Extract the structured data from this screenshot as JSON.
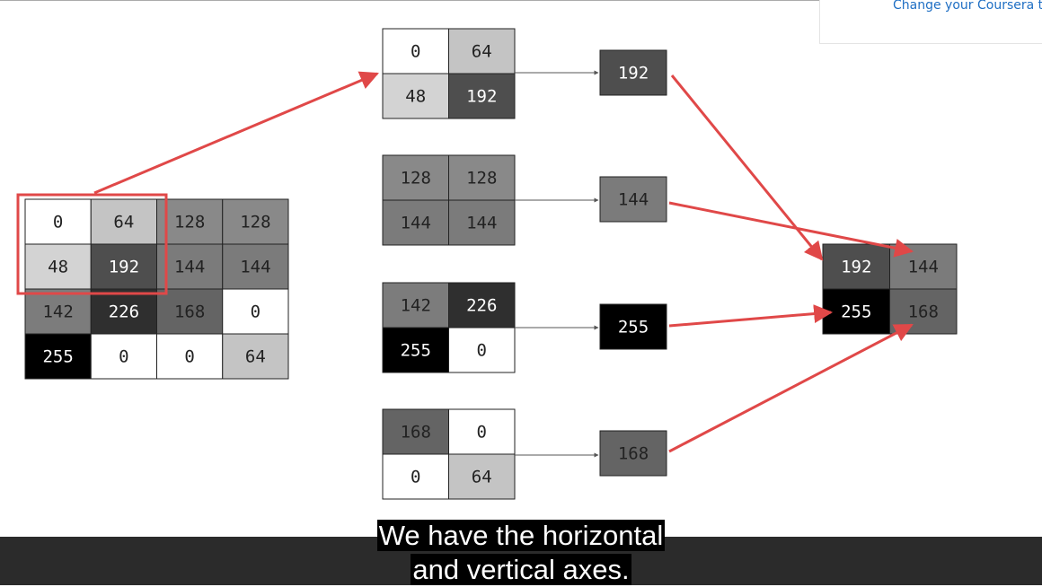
{
  "banner": {
    "text": "Change your Coursera t"
  },
  "input_grid": [
    [
      0,
      64,
      128,
      128
    ],
    [
      48,
      192,
      144,
      144
    ],
    [
      142,
      226,
      168,
      0
    ],
    [
      255,
      0,
      0,
      64
    ]
  ],
  "pools": [
    {
      "grid": [
        [
          0,
          64
        ],
        [
          48,
          192
        ]
      ],
      "max": 192
    },
    {
      "grid": [
        [
          128,
          128
        ],
        [
          144,
          144
        ]
      ],
      "max": 144
    },
    {
      "grid": [
        [
          142,
          226
        ],
        [
          255,
          0
        ]
      ],
      "max": 255
    },
    {
      "grid": [
        [
          168,
          0
        ],
        [
          0,
          64
        ]
      ],
      "max": 168
    }
  ],
  "output_grid": [
    [
      192,
      144
    ],
    [
      255,
      168
    ]
  ],
  "captions": [
    "We have the horizontal",
    "and vertical axes."
  ]
}
